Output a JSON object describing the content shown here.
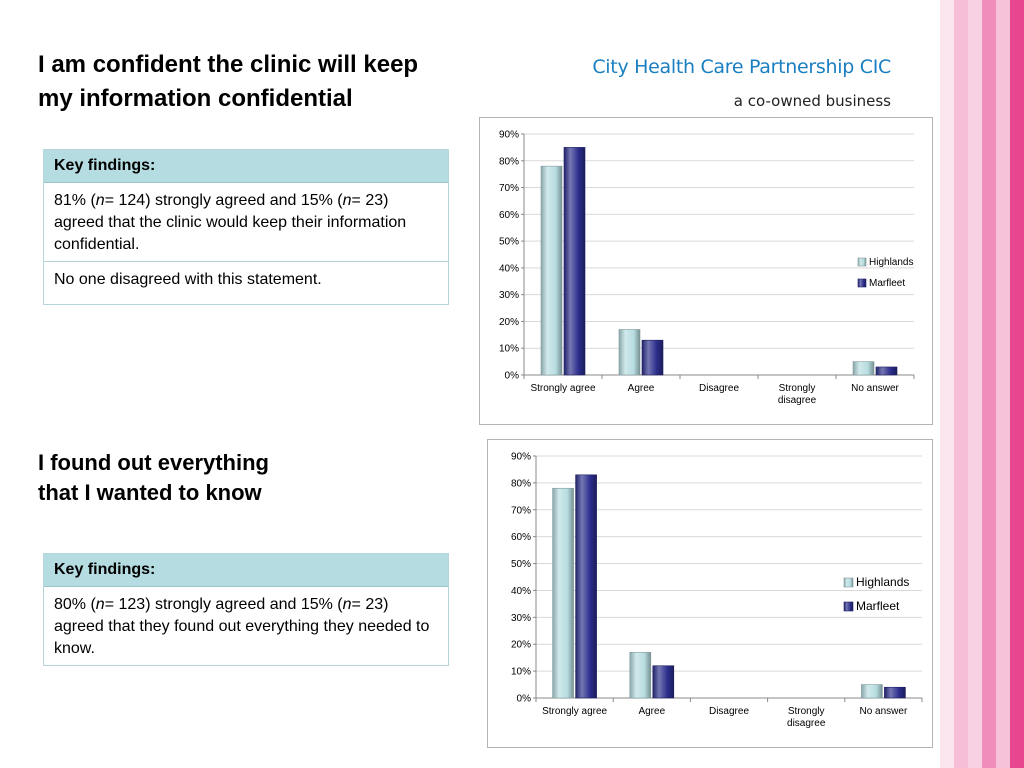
{
  "brand": {
    "name": "City Health Care Partnership CIC",
    "tagline": "a co-owned business",
    "color": "#1a7fc1"
  },
  "side_stripes": [
    "#fbe6f0",
    "#f6bfd7",
    "#f8d2e3",
    "#f08dbb",
    "#f6c2da",
    "#e8468f"
  ],
  "sections": [
    {
      "heading_lines": [
        "I am confident the clinic will keep",
        "my information confidential"
      ],
      "key_findings": {
        "label": "Key findings:",
        "rows": [
          [
            "81% (",
            "n",
            "= 124) strongly agreed and  15% (",
            "n",
            "= 23) agreed that the clinic would keep their information confidential."
          ],
          [
            "No one disagreed with this statement."
          ]
        ]
      }
    },
    {
      "heading_lines": [
        "I found out everything",
        "that I wanted to know"
      ],
      "key_findings": {
        "label": "Key findings:",
        "rows": [
          [
            "80% (",
            "n",
            "= 123) strongly agreed and  15% (",
            "n",
            "= 23) agreed that they found out everything they needed to know."
          ]
        ]
      }
    }
  ],
  "chart_data": [
    {
      "type": "bar",
      "categories": [
        "Strongly agree",
        "Agree",
        "Disagree",
        "Strongly disagree",
        "No answer"
      ],
      "category_label_lines": [
        [
          "Strongly agree"
        ],
        [
          "Agree"
        ],
        [
          "Disagree"
        ],
        [
          "Strongly",
          "disagree"
        ],
        [
          "No answer"
        ]
      ],
      "series": [
        {
          "name": "Highlands",
          "values": [
            78,
            17,
            0,
            0,
            5
          ],
          "color": "#b7dde0"
        },
        {
          "name": "Marfleet",
          "values": [
            85,
            13,
            0,
            0,
            3
          ],
          "color": "#2b2d8c"
        }
      ],
      "y_ticks": [
        "0%",
        "10%",
        "20%",
        "30%",
        "40%",
        "50%",
        "60%",
        "70%",
        "80%",
        "90%"
      ],
      "ylim": [
        0,
        90
      ],
      "y_unit": "%",
      "grid": true,
      "legend_position": "right"
    },
    {
      "type": "bar",
      "categories": [
        "Strongly agree",
        "Agree",
        "Disagree",
        "Strongly disagree",
        "No answer"
      ],
      "category_label_lines": [
        [
          "Strongly agree"
        ],
        [
          "Agree"
        ],
        [
          "Disagree"
        ],
        [
          "Strongly",
          "disagree"
        ],
        [
          "No answer"
        ]
      ],
      "series": [
        {
          "name": "Highlands",
          "values": [
            78,
            17,
            0,
            0,
            5
          ],
          "color": "#b7dde0"
        },
        {
          "name": "Marfleet",
          "values": [
            83,
            12,
            0,
            0,
            4
          ],
          "color": "#2b2d8c"
        }
      ],
      "y_ticks": [
        "0%",
        "10%",
        "20%",
        "30%",
        "40%",
        "50%",
        "60%",
        "70%",
        "80%",
        "90%"
      ],
      "ylim": [
        0,
        90
      ],
      "y_unit": "%",
      "grid": true,
      "legend_position": "right"
    }
  ]
}
